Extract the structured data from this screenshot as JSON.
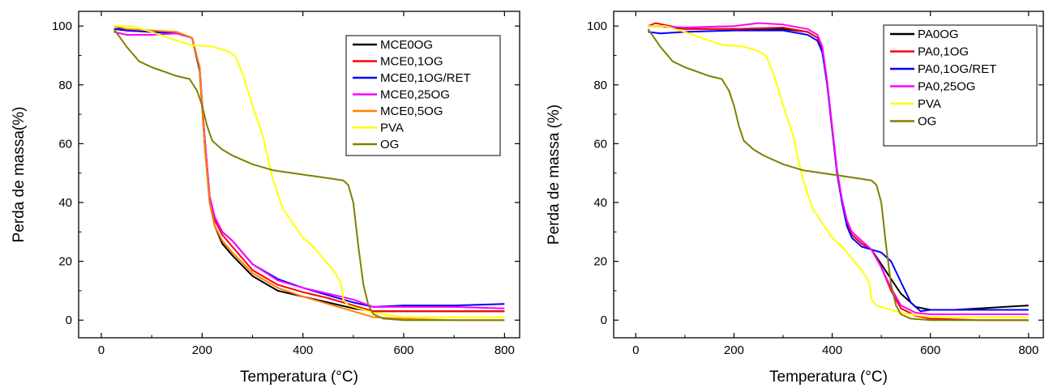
{
  "chart_data": [
    {
      "type": "line",
      "title": "",
      "xlabel": "Temperatura (°C)",
      "ylabel": "Perda de massa(%)",
      "xlim": [
        -45,
        830
      ],
      "ylim": [
        -6,
        105
      ],
      "xticks": [
        0,
        200,
        400,
        600,
        800
      ],
      "yticks": [
        0,
        20,
        40,
        60,
        80,
        100
      ],
      "xtick_labels": [
        "0",
        "200",
        "400",
        "600",
        "800"
      ],
      "ytick_labels": [
        "0",
        "20",
        "40",
        "60",
        "80",
        "100"
      ],
      "grid": false,
      "legend_position": "top-right",
      "series": [
        {
          "name": "MCE0OG",
          "color": "#000000",
          "x": [
            25,
            50,
            100,
            150,
            180,
            195,
            205,
            215,
            225,
            240,
            260,
            300,
            350,
            400,
            450,
            500,
            540,
            600,
            700,
            800
          ],
          "y": [
            100,
            98.5,
            98,
            97.5,
            96,
            85,
            60,
            40,
            32,
            26,
            22,
            15,
            10,
            8,
            6,
            4,
            3,
            3,
            3,
            3
          ]
        },
        {
          "name": "MCE0,1OG",
          "color": "#ff0000",
          "x": [
            25,
            50,
            100,
            150,
            180,
            195,
            205,
            215,
            225,
            240,
            260,
            300,
            350,
            400,
            450,
            500,
            540,
            600,
            700,
            800
          ],
          "y": [
            99,
            98.5,
            98,
            97.5,
            96,
            86,
            62,
            42,
            34,
            29,
            25,
            17,
            12,
            9.5,
            7.5,
            5,
            3,
            3,
            3,
            3
          ]
        },
        {
          "name": "MCE0,1OG/RET",
          "color": "#0000ff",
          "x": [
            25,
            50,
            100,
            150,
            180,
            195,
            205,
            215,
            225,
            240,
            260,
            300,
            350,
            400,
            450,
            500,
            540,
            600,
            700,
            800
          ],
          "y": [
            99,
            98.5,
            98,
            97.5,
            96,
            86,
            62,
            42,
            35,
            30,
            27,
            19,
            14,
            11,
            8.5,
            6,
            4.5,
            5,
            5,
            5.5
          ]
        },
        {
          "name": "MCE0,25OG",
          "color": "#ff00ff",
          "x": [
            25,
            50,
            100,
            150,
            180,
            195,
            205,
            215,
            225,
            240,
            260,
            300,
            350,
            400,
            450,
            500,
            540,
            600,
            700,
            800
          ],
          "y": [
            98,
            97,
            97,
            97.5,
            96,
            86,
            62,
            42,
            35,
            30,
            27,
            19,
            13.5,
            11,
            9,
            7,
            4.5,
            4.5,
            4.5,
            4
          ]
        },
        {
          "name": "MCE0,5OG",
          "color": "#ff8000",
          "x": [
            25,
            50,
            100,
            150,
            180,
            195,
            205,
            215,
            225,
            240,
            260,
            300,
            350,
            400,
            450,
            500,
            540,
            600,
            700,
            800
          ],
          "y": [
            100,
            99,
            98.5,
            98,
            96,
            86,
            60,
            40,
            32,
            27,
            23,
            16,
            11,
            8,
            5.5,
            3,
            1,
            0.5,
            0,
            0
          ]
        },
        {
          "name": "PVA",
          "color": "#ffff00",
          "x": [
            25,
            60,
            100,
            150,
            180,
            220,
            250,
            265,
            280,
            300,
            320,
            340,
            360,
            380,
            400,
            420,
            440,
            460,
            475,
            480,
            490,
            510,
            540,
            600,
            700,
            800
          ],
          "y": [
            100,
            100,
            98,
            95,
            93.5,
            93,
            91.5,
            90,
            84,
            73,
            63,
            48,
            38,
            33,
            28,
            25,
            21,
            17,
            13,
            7,
            5,
            4,
            2.5,
            1,
            1,
            1
          ]
        },
        {
          "name": "OG",
          "color": "#808000",
          "x": [
            25,
            50,
            75,
            100,
            150,
            175,
            190,
            200,
            210,
            220,
            240,
            260,
            300,
            340,
            380,
            420,
            460,
            480,
            490,
            500,
            510,
            520,
            530,
            540,
            560,
            600,
            700,
            800
          ],
          "y": [
            99,
            93,
            88,
            86,
            83,
            82,
            78,
            73,
            66,
            61,
            58,
            56,
            53,
            51,
            50,
            49,
            48,
            47.5,
            46,
            40,
            25,
            12,
            5,
            2,
            0.5,
            0,
            0,
            0
          ]
        }
      ]
    },
    {
      "type": "line",
      "title": "",
      "xlabel": "Temperatura (°C)",
      "ylabel": "Perda de massa (%)",
      "xlim": [
        -45,
        830
      ],
      "ylim": [
        -6,
        105
      ],
      "xticks": [
        0,
        200,
        400,
        600,
        800
      ],
      "yticks": [
        0,
        20,
        40,
        60,
        80,
        100
      ],
      "xtick_labels": [
        "0",
        "200",
        "400",
        "600",
        "800"
      ],
      "ytick_labels": [
        "0",
        "20",
        "40",
        "60",
        "80",
        "100"
      ],
      "grid": false,
      "legend_position": "top-right",
      "series": [
        {
          "name": "PA0OG",
          "color": "#000000",
          "x": [
            25,
            50,
            100,
            200,
            300,
            350,
            370,
            380,
            390,
            400,
            410,
            420,
            430,
            440,
            460,
            480,
            500,
            520,
            540,
            570,
            600,
            650,
            700,
            750,
            800
          ],
          "y": [
            100,
            100,
            99,
            99,
            99,
            98,
            96,
            92,
            80,
            65,
            50,
            40,
            33,
            29,
            26,
            24,
            19,
            14,
            9,
            4.5,
            3.5,
            3.5,
            4,
            4.5,
            5
          ]
        },
        {
          "name": "PA0,1OG",
          "color": "#ff0000",
          "x": [
            25,
            40,
            100,
            200,
            300,
            350,
            370,
            380,
            390,
            400,
            410,
            420,
            430,
            440,
            460,
            480,
            500,
            520,
            540,
            570,
            600,
            700,
            800
          ],
          "y": [
            100,
            101,
            99,
            99,
            99.5,
            98,
            96,
            92,
            80,
            65,
            50,
            40,
            33,
            29,
            26,
            24,
            18,
            10,
            4,
            1.5,
            0.5,
            0,
            0
          ]
        },
        {
          "name": "PA0,1OG/RET",
          "color": "#0000ff",
          "x": [
            25,
            50,
            100,
            200,
            300,
            350,
            370,
            380,
            390,
            400,
            410,
            420,
            430,
            440,
            460,
            480,
            500,
            520,
            540,
            560,
            580,
            600,
            700,
            800
          ],
          "y": [
            98,
            97.5,
            98,
            98.5,
            98.5,
            97,
            95,
            91,
            80,
            65,
            50,
            40,
            32,
            28,
            25,
            24,
            23,
            20,
            13,
            6,
            3,
            3.5,
            3.5,
            3.5
          ]
        },
        {
          "name": "PA0,25OG",
          "color": "#ff00ff",
          "x": [
            25,
            50,
            100,
            200,
            250,
            300,
            350,
            370,
            380,
            390,
            400,
            410,
            420,
            430,
            440,
            460,
            480,
            500,
            520,
            540,
            570,
            600,
            700,
            800
          ],
          "y": [
            100,
            100,
            99.5,
            100,
            101,
            100.5,
            99,
            97,
            93,
            81,
            66,
            51,
            41,
            34,
            30,
            27,
            24,
            18,
            11,
            5,
            2.5,
            2,
            2,
            2
          ]
        },
        {
          "name": "PVA",
          "color": "#ffff00",
          "x": [
            25,
            60,
            100,
            150,
            180,
            220,
            250,
            265,
            280,
            300,
            320,
            340,
            360,
            380,
            400,
            420,
            440,
            460,
            475,
            480,
            490,
            510,
            540,
            600,
            700,
            800
          ],
          "y": [
            100,
            100,
            98,
            95,
            93.5,
            93,
            91.5,
            90,
            84,
            73,
            63,
            48,
            38,
            33,
            28,
            25,
            21,
            17,
            13,
            7,
            5,
            4,
            2.5,
            1,
            1,
            1
          ]
        },
        {
          "name": "OG",
          "color": "#808000",
          "x": [
            25,
            50,
            75,
            100,
            150,
            175,
            190,
            200,
            210,
            220,
            240,
            260,
            300,
            340,
            380,
            420,
            460,
            480,
            490,
            500,
            510,
            520,
            530,
            540,
            560,
            600,
            700,
            800
          ],
          "y": [
            99,
            93,
            88,
            86,
            83,
            82,
            78,
            73,
            66,
            61,
            58,
            56,
            53,
            51,
            50,
            49,
            48,
            47.5,
            46,
            40,
            25,
            12,
            5,
            2,
            0.5,
            0,
            0,
            0
          ]
        }
      ]
    }
  ]
}
